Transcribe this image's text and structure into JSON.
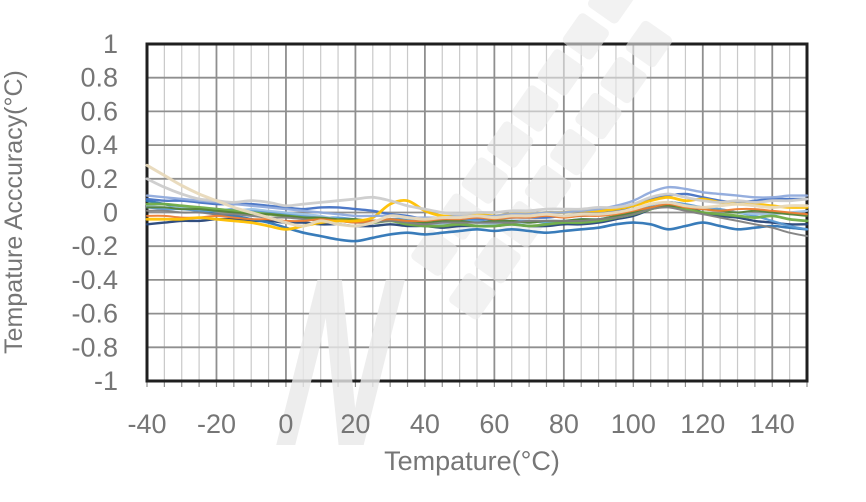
{
  "figure": {
    "x_axis_title": "Tempature(°C)",
    "y_axis_title": "Tempature Acccuracy(°C)"
  },
  "chart_data": {
    "type": "line",
    "title": "",
    "xlabel": "Tempature(°C)",
    "ylabel": "Tempature Acccuracy(°C)",
    "xlim": [
      -40,
      150
    ],
    "ylim": [
      -1,
      1
    ],
    "x_ticks": [
      -40,
      -20,
      0,
      20,
      40,
      60,
      80,
      100,
      120,
      140
    ],
    "x_tick_labels": [
      "-40",
      "-20",
      "0",
      "20",
      "40",
      "60",
      "80",
      "100",
      "120",
      "140"
    ],
    "y_ticks": [
      1,
      0.8,
      0.6,
      0.4,
      0.2,
      0,
      -0.2,
      -0.4,
      -0.6,
      -0.8,
      -1
    ],
    "y_tick_labels": [
      "1",
      "0.8",
      "0.6",
      "0.4",
      "0.2",
      "0",
      "-0.2",
      "-0.4",
      "-0.6",
      "-0.8",
      "-1"
    ],
    "grid": {
      "minor_x_step": 5,
      "major_x_step": 20,
      "major_y_step": 0.2,
      "minor_grid_color": "#c9c9c9",
      "major_grid_color": "#8f8f8f",
      "border_color": "#1f1f1f"
    },
    "label_color": "#767676",
    "legend": "none",
    "watermark": {
      "logo_letter": "N",
      "color": "#e9e9e9"
    },
    "x": [
      -40,
      -35,
      -30,
      -25,
      -20,
      -15,
      -10,
      -5,
      0,
      5,
      10,
      15,
      20,
      25,
      30,
      35,
      40,
      45,
      50,
      55,
      60,
      65,
      70,
      75,
      80,
      85,
      90,
      95,
      100,
      105,
      110,
      115,
      120,
      125,
      130,
      135,
      140,
      145,
      150
    ],
    "series": [
      {
        "name": "navy",
        "color": "#264478",
        "width": 2.4,
        "values": [
          -0.07,
          -0.06,
          -0.05,
          -0.05,
          -0.04,
          -0.04,
          -0.05,
          -0.05,
          -0.06,
          -0.06,
          -0.07,
          -0.07,
          -0.08,
          -0.08,
          -0.07,
          -0.08,
          -0.08,
          -0.09,
          -0.08,
          -0.08,
          -0.08,
          -0.07,
          -0.08,
          -0.08,
          -0.07,
          -0.07,
          -0.06,
          -0.04,
          -0.02,
          0.02,
          0.06,
          0.04,
          0.0,
          -0.02,
          -0.03,
          -0.05,
          -0.06,
          -0.07,
          -0.07
        ]
      },
      {
        "name": "medium-blue",
        "color": "#2E75B6",
        "width": 2.6,
        "values": [
          0.07,
          0.05,
          0.03,
          0.01,
          -0.01,
          -0.02,
          -0.04,
          -0.06,
          -0.09,
          -0.12,
          -0.14,
          -0.16,
          -0.17,
          -0.15,
          -0.13,
          -0.12,
          -0.13,
          -0.12,
          -0.11,
          -0.1,
          -0.11,
          -0.1,
          -0.11,
          -0.12,
          -0.11,
          -0.1,
          -0.09,
          -0.07,
          -0.06,
          -0.07,
          -0.1,
          -0.08,
          -0.06,
          -0.08,
          -0.1,
          -0.09,
          -0.08,
          -0.09,
          -0.1
        ]
      },
      {
        "name": "royal-blue",
        "color": "#4472C4",
        "width": 2.4,
        "values": [
          0.08,
          0.07,
          0.07,
          0.06,
          0.05,
          0.05,
          0.05,
          0.04,
          0.03,
          0.02,
          0.03,
          0.03,
          0.02,
          0.01,
          -0.01,
          -0.02,
          -0.04,
          -0.05,
          -0.04,
          -0.04,
          -0.04,
          -0.03,
          -0.03,
          -0.03,
          -0.02,
          -0.02,
          -0.01,
          0.01,
          0.04,
          0.08,
          0.1,
          0.11,
          0.09,
          0.07,
          0.06,
          0.07,
          0.08,
          0.08,
          0.08
        ]
      },
      {
        "name": "steel-blue",
        "color": "#5B9BD5",
        "width": 2.2,
        "values": [
          0.03,
          0.02,
          0.02,
          0.01,
          0.01,
          0.02,
          0.01,
          0.0,
          -0.01,
          -0.02,
          -0.03,
          -0.03,
          -0.04,
          -0.05,
          -0.04,
          -0.04,
          -0.06,
          -0.06,
          -0.05,
          -0.05,
          -0.06,
          -0.05,
          -0.05,
          -0.06,
          -0.05,
          -0.04,
          -0.04,
          -0.02,
          0.0,
          0.04,
          0.06,
          0.05,
          0.03,
          0.02,
          0.0,
          -0.02,
          -0.05,
          -0.08,
          -0.1
        ]
      },
      {
        "name": "sky-blue",
        "color": "#9DC3E6",
        "width": 2.2,
        "values": [
          0.04,
          0.03,
          0.03,
          0.02,
          0.02,
          0.01,
          0.02,
          0.01,
          0.0,
          -0.01,
          -0.02,
          -0.04,
          -0.05,
          -0.06,
          -0.05,
          -0.06,
          -0.07,
          -0.07,
          -0.06,
          -0.06,
          -0.07,
          -0.06,
          -0.06,
          -0.05,
          -0.05,
          -0.05,
          -0.04,
          -0.03,
          -0.01,
          0.03,
          0.05,
          0.04,
          0.02,
          0.01,
          0.0,
          -0.01,
          -0.01,
          0.0,
          0.01
        ]
      },
      {
        "name": "green",
        "color": "#70AD47",
        "width": 2.8,
        "values": [
          0.05,
          0.05,
          0.04,
          0.03,
          0.02,
          0.01,
          0.0,
          -0.01,
          -0.02,
          -0.03,
          -0.04,
          -0.05,
          -0.05,
          -0.06,
          -0.05,
          -0.07,
          -0.08,
          -0.08,
          -0.07,
          -0.08,
          -0.08,
          -0.07,
          -0.08,
          -0.07,
          -0.06,
          -0.06,
          -0.05,
          -0.03,
          -0.01,
          0.02,
          0.04,
          0.02,
          0.0,
          -0.01,
          -0.02,
          -0.03,
          -0.02,
          -0.04,
          -0.05
        ]
      },
      {
        "name": "dark-green",
        "color": "#548235",
        "width": 2.0,
        "values": [
          0.03,
          0.03,
          0.02,
          0.02,
          0.01,
          0.0,
          -0.01,
          -0.01,
          -0.02,
          -0.03,
          -0.03,
          -0.04,
          -0.04,
          -0.05,
          -0.04,
          -0.05,
          -0.06,
          -0.05,
          -0.05,
          -0.06,
          -0.05,
          -0.05,
          -0.06,
          -0.05,
          -0.05,
          -0.04,
          -0.04,
          -0.02,
          0.0,
          0.03,
          0.04,
          0.03,
          0.02,
          0.01,
          0.0,
          0.01,
          0.0,
          -0.01,
          -0.02
        ]
      },
      {
        "name": "dark-gray",
        "color": "#808080",
        "width": 2.0,
        "values": [
          0.01,
          0.01,
          0.0,
          0.0,
          -0.01,
          -0.01,
          -0.02,
          -0.03,
          -0.03,
          -0.04,
          -0.05,
          -0.05,
          -0.06,
          -0.06,
          -0.05,
          -0.06,
          -0.07,
          -0.06,
          -0.06,
          -0.06,
          -0.06,
          -0.06,
          -0.05,
          -0.05,
          -0.05,
          -0.05,
          -0.04,
          -0.03,
          -0.01,
          0.02,
          0.03,
          0.01,
          -0.01,
          -0.03,
          -0.05,
          -0.07,
          -0.09,
          -0.12,
          -0.14
        ]
      },
      {
        "name": "orange",
        "color": "#ED7D31",
        "width": 2.0,
        "values": [
          -0.02,
          -0.02,
          -0.03,
          -0.03,
          -0.02,
          -0.03,
          -0.04,
          -0.04,
          -0.05,
          -0.05,
          -0.04,
          -0.05,
          -0.06,
          -0.05,
          -0.04,
          -0.05,
          -0.05,
          -0.04,
          -0.04,
          -0.03,
          -0.04,
          -0.03,
          -0.03,
          -0.02,
          -0.03,
          -0.02,
          -0.02,
          -0.01,
          0.01,
          0.03,
          0.05,
          0.03,
          0.02,
          0.01,
          0.02,
          0.02,
          0.01,
          0.0,
          -0.01
        ]
      },
      {
        "name": "gold",
        "color": "#FFC000",
        "width": 2.8,
        "values": [
          -0.04,
          -0.04,
          -0.04,
          -0.03,
          -0.04,
          -0.05,
          -0.06,
          -0.08,
          -0.1,
          -0.08,
          -0.06,
          -0.05,
          -0.05,
          -0.03,
          0.05,
          0.07,
          0.01,
          -0.02,
          -0.02,
          -0.01,
          -0.02,
          -0.01,
          -0.01,
          0.0,
          0.0,
          0.01,
          0.01,
          0.02,
          0.04,
          0.07,
          0.09,
          0.07,
          0.08,
          0.06,
          0.05,
          0.05,
          0.04,
          0.03,
          0.03
        ]
      },
      {
        "name": "periwinkle",
        "color": "#8FAADC",
        "width": 2.4,
        "values": [
          0.1,
          0.09,
          0.08,
          0.07,
          0.06,
          0.05,
          0.04,
          0.03,
          0.02,
          0.01,
          0.0,
          -0.01,
          -0.02,
          -0.02,
          -0.02,
          -0.03,
          -0.03,
          -0.03,
          -0.02,
          -0.02,
          -0.02,
          -0.01,
          -0.01,
          0.0,
          0.0,
          0.01,
          0.02,
          0.04,
          0.07,
          0.12,
          0.15,
          0.14,
          0.12,
          0.11,
          0.1,
          0.09,
          0.09,
          0.1,
          0.1
        ]
      },
      {
        "name": "light-gray",
        "color": "#CCCCCC",
        "width": 2.8,
        "values": [
          0.2,
          0.15,
          0.11,
          0.08,
          0.07,
          0.06,
          0.07,
          0.06,
          0.04,
          0.05,
          0.06,
          0.07,
          0.08,
          0.09,
          0.07,
          0.04,
          0.02,
          0.0,
          -0.01,
          0.0,
          0.0,
          0.01,
          0.01,
          0.02,
          0.02,
          0.02,
          0.03,
          0.03,
          0.05,
          0.09,
          0.11,
          0.09,
          0.07,
          0.06,
          0.07,
          0.06,
          0.07,
          0.07,
          0.08
        ]
      },
      {
        "name": "cream",
        "color": "#E8D9BB",
        "width": 3.0,
        "values": [
          0.28,
          0.22,
          0.16,
          0.11,
          0.07,
          0.03,
          0.0,
          -0.03,
          -0.06,
          -0.08,
          -0.05,
          -0.07,
          -0.08,
          -0.06,
          -0.02,
          -0.03,
          -0.04,
          -0.03,
          -0.03,
          -0.02,
          -0.03,
          -0.02,
          -0.02,
          -0.01,
          -0.02,
          -0.01,
          -0.01,
          0.0,
          0.02,
          0.05,
          0.06,
          0.04,
          0.03,
          0.04,
          0.05,
          0.04,
          0.03,
          0.04,
          0.04
        ]
      }
    ]
  }
}
